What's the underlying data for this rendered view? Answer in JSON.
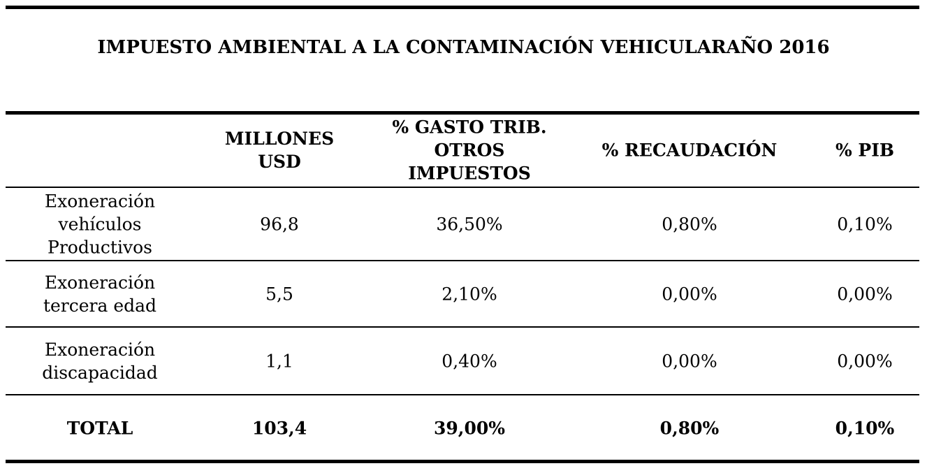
{
  "header": {
    "title": [
      "IMPUESTO AMBIENTAL A LA CONTAMINACIÓN VEHICULAR",
      "AÑO 2016"
    ]
  },
  "table": {
    "columns": [
      [],
      [
        "MILLONES",
        "USD"
      ],
      [
        "% GASTO TRIB.",
        "OTROS",
        "IMPUESTOS"
      ],
      [
        "% RECAUDACIÓN"
      ],
      [
        "% PIB"
      ]
    ],
    "rows": [
      [
        [
          "Exoneración",
          "vehículos",
          "Productivos"
        ],
        [
          "96,8"
        ],
        [
          "36,50%"
        ],
        [
          "0,80%"
        ],
        [
          "0,10%"
        ]
      ],
      [
        [
          "Exoneración",
          "tercera edad"
        ],
        [
          "5,5"
        ],
        [
          "2,10%"
        ],
        [
          "0,00%"
        ],
        [
          "0,00%"
        ]
      ],
      [
        [
          "Exoneración",
          "discapacidad"
        ],
        [
          "1,1"
        ],
        [
          "0,40%"
        ],
        [
          "0,00%"
        ],
        [
          "0,00%"
        ]
      ]
    ],
    "total": [
      [
        "TOTAL"
      ],
      [
        "103,4"
      ],
      [
        "39,00%"
      ],
      [
        "0,80%"
      ],
      [
        "0,10%"
      ]
    ]
  }
}
